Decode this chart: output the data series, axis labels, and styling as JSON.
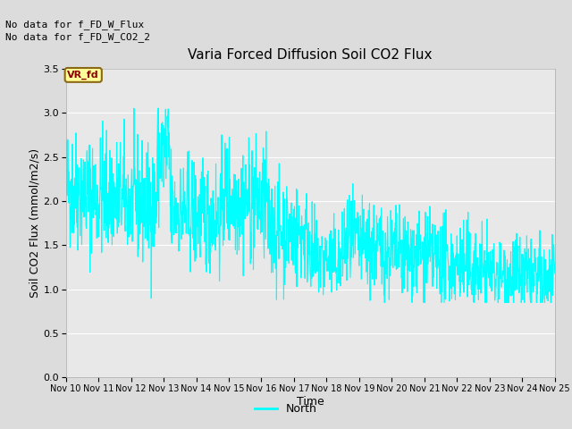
{
  "title": "Varia Forced Diffusion Soil CO2 Flux",
  "xlabel": "Time",
  "ylabel": "Soil CO2 Flux (mmol/m2/s)",
  "ylim": [
    0.0,
    3.5
  ],
  "yticks": [
    0.0,
    0.5,
    1.0,
    1.5,
    2.0,
    2.5,
    3.0,
    3.5
  ],
  "line_color": "#00FFFF",
  "line_width": 0.8,
  "background_color": "#E8E8E8",
  "fig_background": "#DCDCDC",
  "annotation1": "No data for f_FD_W_Flux",
  "annotation2": "No data for f_FD_W_CO2_2",
  "vr_fd_label": "VR_fd",
  "legend_label": "North",
  "x_tick_labels": [
    "Nov 10",
    "Nov 11",
    "Nov 12",
    "Nov 13",
    "Nov 14",
    "Nov 15",
    "Nov 16",
    "Nov 17",
    "Nov 18",
    "Nov 19",
    "Nov 20",
    "Nov 21",
    "Nov 22",
    "Nov 23",
    "Nov 24",
    "Nov 25"
  ],
  "seed": 42,
  "num_points": 1500,
  "start_day": 10,
  "end_day": 25
}
